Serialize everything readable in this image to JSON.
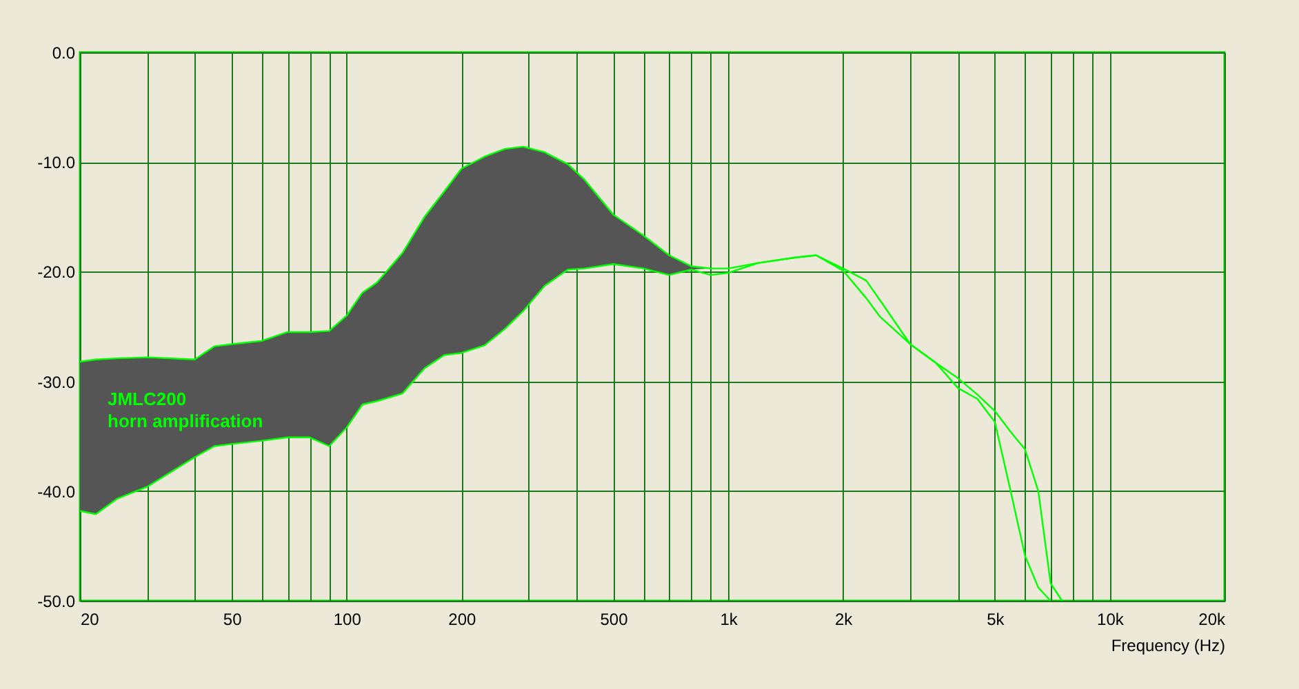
{
  "chart_data": {
    "type": "line",
    "xlabel": "Frequency (Hz)",
    "log": "x",
    "grid": true,
    "marker": "none",
    "line_style": "solid",
    "xlim": [
      20,
      20000
    ],
    "ylim": [
      -50,
      0
    ],
    "xticks": [
      20,
      {
        "value": 30,
        "label": null
      },
      {
        "value": 40,
        "label": null
      },
      50,
      {
        "value": 60,
        "label": null
      },
      {
        "value": 70,
        "label": null
      },
      {
        "value": 80,
        "label": null
      },
      {
        "value": 90,
        "label": null
      },
      100,
      200,
      {
        "value": 300,
        "label": null
      },
      {
        "value": 400,
        "label": null
      },
      500,
      {
        "value": 600,
        "label": null
      },
      {
        "value": 700,
        "label": null
      },
      {
        "value": 800,
        "label": null
      },
      {
        "value": 900,
        "label": null
      },
      {
        "value": 1000,
        "label": "1k"
      },
      {
        "value": 2000,
        "label": "2k"
      },
      {
        "value": 3000,
        "label": null
      },
      {
        "value": 4000,
        "label": null
      },
      {
        "value": 5000,
        "label": "5k"
      },
      {
        "value": 6000,
        "label": null
      },
      {
        "value": 7000,
        "label": null
      },
      {
        "value": 8000,
        "label": null
      },
      {
        "value": 9000,
        "label": null
      },
      {
        "value": 10000,
        "label": "10k"
      },
      {
        "value": 20000,
        "label": "20k"
      }
    ],
    "yticks": [
      {
        "value": 0,
        "label": "0.0"
      },
      {
        "value": -10,
        "label": "-10.0"
      },
      {
        "value": -20,
        "label": "-20.0"
      },
      {
        "value": -30,
        "label": "-30.0"
      },
      {
        "value": -40,
        "label": "-40.0"
      },
      {
        "value": -50,
        "label": "-50.0"
      }
    ],
    "x": [
      20,
      22,
      25,
      30,
      40,
      45,
      50,
      60,
      70,
      80,
      90,
      100,
      110,
      120,
      140,
      160,
      180,
      200,
      230,
      260,
      290,
      330,
      380,
      420,
      500,
      600,
      700,
      800,
      900,
      1000,
      1200,
      1500,
      1700,
      2000,
      2300,
      2500,
      3000,
      3500,
      4000,
      4500,
      5000,
      5500,
      6000,
      6500,
      7000,
      7500
    ],
    "series": [
      {
        "color": "#00ff00",
        "values": [
          -28.2,
          -28.0,
          -27.9,
          -27.8,
          -28.0,
          -26.8,
          -26.6,
          -26.3,
          -25.5,
          -25.5,
          -25.4,
          -24.0,
          -21.9,
          -21.0,
          -18.3,
          -15.0,
          -12.7,
          -10.6,
          -9.5,
          -8.8,
          -8.6,
          -9.1,
          -10.2,
          -11.6,
          -14.8,
          -16.7,
          -18.5,
          -19.5,
          -19.7,
          -19.7,
          -19.2,
          -18.7,
          -18.5,
          -19.7,
          -20.8,
          -22.6,
          -26.6,
          -28.3,
          -29.7,
          -31.2,
          -32.7,
          -34.6,
          -36.2,
          -40.0,
          -48.4,
          -50.0
        ],
        "lower": [
          -41.8,
          -42.1,
          -40.7,
          -39.6,
          -36.9,
          -35.9,
          -35.7,
          -35.4,
          -35.1,
          -35.1,
          -35.9,
          -34.2,
          -32.1,
          -31.8,
          -31.1,
          -28.8,
          -27.6,
          -27.4,
          -26.7,
          -25.2,
          -23.6,
          -21.3,
          -19.8,
          -19.7,
          -19.3,
          -19.7,
          -20.3,
          -19.8,
          -19.7,
          null,
          null,
          null,
          null,
          null,
          null,
          null,
          null,
          null,
          null,
          null,
          null,
          null,
          null,
          null,
          null,
          null
        ],
        "upper": [
          -28.2,
          -28.0,
          -27.9,
          -27.8,
          -28.0,
          -26.8,
          -26.6,
          -26.3,
          -25.5,
          -25.5,
          -25.4,
          -24.0,
          -21.9,
          -21.0,
          -18.3,
          -15.0,
          -12.7,
          -10.6,
          -9.5,
          -8.8,
          -8.6,
          -9.1,
          -10.2,
          -11.6,
          -14.8,
          -16.7,
          -18.5,
          -19.5,
          -19.7,
          null,
          null,
          null,
          null,
          null,
          null,
          null,
          null,
          null,
          null,
          null,
          null,
          null,
          null,
          null,
          null,
          null
        ]
      },
      {
        "color": "#00ff00",
        "values": [
          -41.8,
          -42.1,
          -40.7,
          -39.6,
          -36.9,
          -35.9,
          -35.7,
          -35.4,
          -35.1,
          -35.1,
          -35.9,
          -34.2,
          -32.1,
          -31.8,
          -31.1,
          -28.8,
          -27.6,
          -27.4,
          -26.7,
          -25.2,
          -23.6,
          -21.3,
          -19.8,
          -19.7,
          -19.3,
          -19.7,
          -20.3,
          -19.8,
          -20.3,
          -20.1,
          -19.2,
          -18.7,
          -18.5,
          -19.9,
          -22.4,
          -24.1,
          -26.6,
          -28.3,
          -30.6,
          -31.6,
          -33.7,
          -40.0,
          -45.9,
          -48.8,
          -50.0,
          null
        ]
      }
    ],
    "annotations": [
      "JMLC200\nhorn amplification"
    ]
  }
}
